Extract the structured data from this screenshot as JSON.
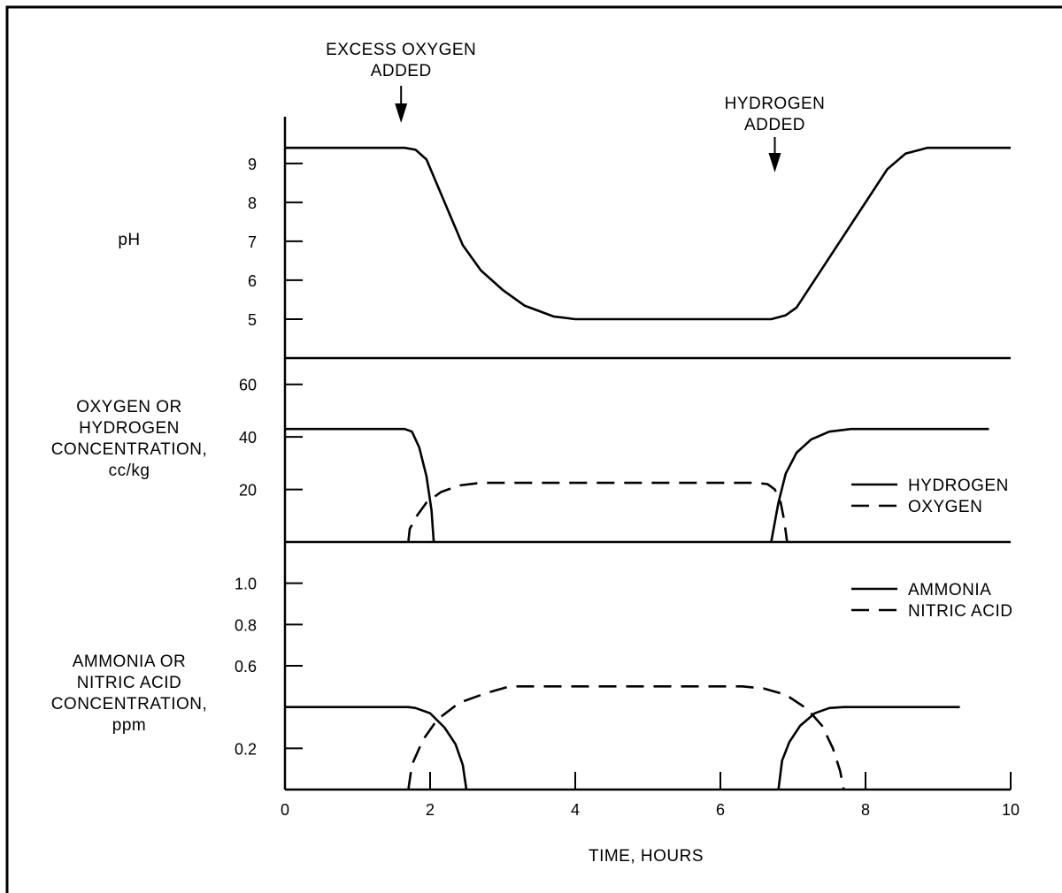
{
  "chart_data": {
    "type": "line",
    "xlabel": "TIME, HOURS",
    "xlim": [
      0,
      10
    ],
    "x_ticks": [
      0,
      2,
      4,
      6,
      8,
      10
    ],
    "annotations": [
      {
        "text": [
          "EXCESS OXYGEN",
          "ADDED"
        ],
        "x": 1.6
      },
      {
        "text": [
          "HYDROGEN",
          "ADDED"
        ],
        "x": 6.75
      }
    ],
    "panels": [
      {
        "id": "ph",
        "ylabel": [
          "pH"
        ],
        "ylim": [
          4,
          10.2
        ],
        "y_ticks": [
          5,
          6,
          7,
          8,
          9
        ],
        "series": [
          {
            "style": "solid",
            "points": [
              [
                0,
                9.4
              ],
              [
                1.65,
                9.4
              ],
              [
                1.8,
                9.35
              ],
              [
                1.95,
                9.1
              ],
              [
                2.2,
                8.0
              ],
              [
                2.45,
                6.9
              ],
              [
                2.7,
                6.25
              ],
              [
                3.0,
                5.75
              ],
              [
                3.3,
                5.35
              ],
              [
                3.7,
                5.07
              ],
              [
                4.0,
                5.0
              ],
              [
                6.7,
                5.0
              ],
              [
                6.9,
                5.1
              ],
              [
                7.05,
                5.3
              ],
              [
                8.3,
                8.85
              ],
              [
                8.55,
                9.25
              ],
              [
                8.85,
                9.4
              ],
              [
                10.0,
                9.4
              ]
            ]
          }
        ]
      },
      {
        "id": "gas",
        "ylabel": [
          "OXYGEN OR",
          "HYDROGEN",
          "CONCENTRATION,",
          "cc/kg"
        ],
        "ylim": [
          0,
          70
        ],
        "y_ticks": [
          20,
          40,
          60
        ],
        "legend": [
          {
            "name": "HYDROGEN",
            "style": "solid"
          },
          {
            "name": "OXYGEN",
            "style": "dashed"
          }
        ],
        "series": [
          {
            "name": "HYDROGEN",
            "style": "solid",
            "points": [
              [
                0,
                43
              ],
              [
                1.65,
                43
              ],
              [
                1.75,
                42
              ],
              [
                1.85,
                36
              ],
              [
                1.95,
                25
              ],
              [
                2.02,
                12
              ],
              [
                2.05,
                0
              ],
              null,
              [
                6.7,
                0
              ],
              [
                6.8,
                15
              ],
              [
                6.9,
                26
              ],
              [
                7.05,
                34
              ],
              [
                7.25,
                39
              ],
              [
                7.5,
                42
              ],
              [
                7.8,
                43
              ],
              [
                9.7,
                43
              ]
            ]
          },
          {
            "name": "OXYGEN",
            "style": "dashed",
            "points": [
              [
                1.7,
                0
              ],
              [
                1.72,
                5
              ],
              [
                1.82,
                10
              ],
              [
                1.95,
                15
              ],
              [
                2.15,
                19
              ],
              [
                2.4,
                21.5
              ],
              [
                2.7,
                22.5
              ],
              [
                3.0,
                22.5
              ],
              [
                6.5,
                22.5
              ],
              [
                6.65,
                22
              ],
              [
                6.75,
                20
              ],
              [
                6.83,
                15
              ],
              [
                6.88,
                8
              ],
              [
                6.92,
                0
              ]
            ]
          }
        ]
      },
      {
        "id": "chem",
        "ylabel": [
          "AMMONIA OR",
          "NITRIC ACID",
          "CONCENTRATION,",
          "ppm"
        ],
        "ylim": [
          0,
          1.2
        ],
        "y_ticks": [
          0.2,
          0.6,
          0.8,
          1.0
        ],
        "legend": [
          {
            "name": "AMMONIA",
            "style": "solid"
          },
          {
            "name": "NITRIC ACID",
            "style": "dashed"
          }
        ],
        "series": [
          {
            "name": "AMMONIA",
            "style": "solid",
            "points": [
              [
                0,
                0.4
              ],
              [
                1.7,
                0.4
              ],
              [
                1.8,
                0.395
              ],
              [
                2.0,
                0.37
              ],
              [
                2.2,
                0.3
              ],
              [
                2.35,
                0.22
              ],
              [
                2.45,
                0.12
              ],
              [
                2.5,
                0
              ],
              null,
              [
                6.8,
                0
              ],
              [
                6.85,
                0.14
              ],
              [
                6.95,
                0.23
              ],
              [
                7.1,
                0.31
              ],
              [
                7.3,
                0.37
              ],
              [
                7.5,
                0.395
              ],
              [
                7.7,
                0.4
              ],
              [
                9.3,
                0.4
              ]
            ]
          },
          {
            "name": "NITRIC ACID",
            "style": "dashed",
            "points": [
              [
                1.7,
                0
              ],
              [
                1.75,
                0.12
              ],
              [
                1.9,
                0.24
              ],
              [
                2.1,
                0.34
              ],
              [
                2.4,
                0.42
              ],
              [
                2.75,
                0.465
              ],
              [
                3.1,
                0.5
              ],
              [
                6.3,
                0.5
              ],
              [
                6.6,
                0.49
              ],
              [
                6.9,
                0.46
              ],
              [
                7.2,
                0.39
              ],
              [
                7.4,
                0.31
              ],
              [
                7.55,
                0.2
              ],
              [
                7.65,
                0.09
              ],
              [
                7.7,
                0
              ]
            ]
          }
        ]
      }
    ]
  }
}
